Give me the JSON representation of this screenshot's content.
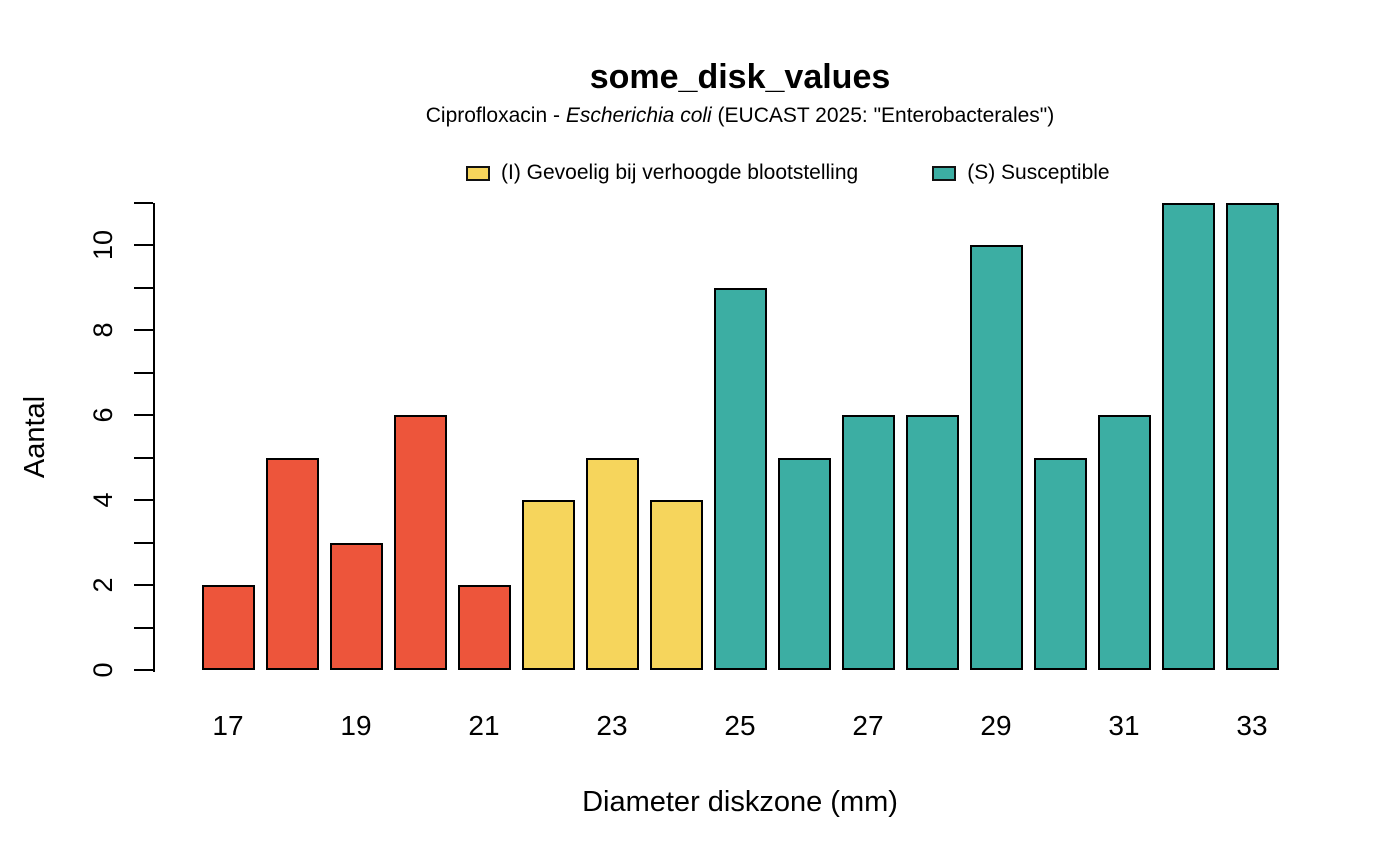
{
  "header": {
    "title": "some_disk_values",
    "subtitle_prefix": "Ciprofloxacin - ",
    "subtitle_italic": "Escherichia coli",
    "subtitle_suffix": " (EUCAST 2025: \"Enterobacterales\")"
  },
  "legend": {
    "items": [
      {
        "group": "I",
        "label": "(I) Gevoelig bij verhoogde blootstelling",
        "color": "#F6D55C"
      },
      {
        "group": "S",
        "label": "(S) Susceptible",
        "color": "#3CAEA3"
      }
    ]
  },
  "axes": {
    "x_title": "Diameter diskzone (mm)",
    "y_title": "Aantal"
  },
  "chart_data": {
    "type": "bar",
    "title": "some_disk_values",
    "subtitle": "Ciprofloxacin - Escherichia coli (EUCAST 2025: \"Enterobacterales\")",
    "xlabel": "Diameter diskzone (mm)",
    "ylabel": "Aantal",
    "ylim": [
      0,
      11
    ],
    "grid": false,
    "legend_position": "top",
    "categories": [
      "17",
      "18",
      "19",
      "20",
      "21",
      "22",
      "23",
      "24",
      "25",
      "26",
      "27",
      "28",
      "29",
      "30",
      "31",
      "32",
      "33"
    ],
    "values": [
      2,
      5,
      3,
      6,
      2,
      4,
      5,
      4,
      9,
      5,
      6,
      6,
      10,
      5,
      6,
      11,
      11
    ],
    "groups": [
      "R",
      "R",
      "R",
      "R",
      "R",
      "I",
      "I",
      "I",
      "S",
      "S",
      "S",
      "S",
      "S",
      "S",
      "S",
      "S",
      "S"
    ],
    "group_colors": {
      "R": "#ED553B",
      "I": "#F6D55C",
      "S": "#3CAEA3"
    },
    "bar_border_color": "#000000",
    "y_label_ticks": [
      0,
      2,
      4,
      6,
      8,
      10
    ],
    "y_minor_tick_every": 1,
    "x_label_ticks": [
      "17",
      "19",
      "21",
      "23",
      "25",
      "27",
      "29",
      "31",
      "33"
    ],
    "legend_entries": [
      "(I) Gevoelig bij verhoogde blootstelling",
      "(S) Susceptible"
    ]
  }
}
